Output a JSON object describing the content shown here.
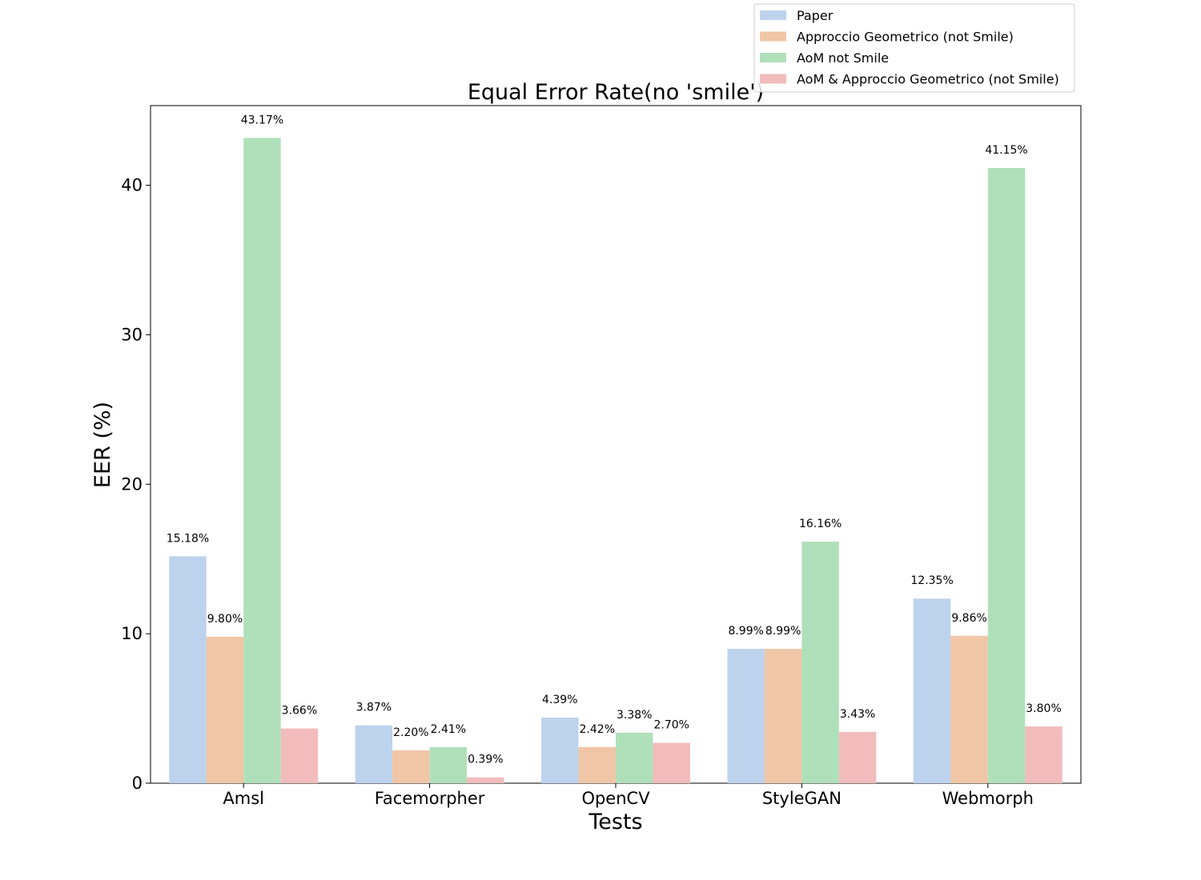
{
  "chart_data": {
    "type": "bar",
    "title": "Equal Error Rate(no 'smile')",
    "xlabel": "Tests",
    "ylabel": "EER (%)",
    "categories": [
      "Amsl",
      "Facemorpher",
      "OpenCV",
      "StyleGAN",
      "Webmorph"
    ],
    "series": [
      {
        "name": "Paper",
        "color": "#bdd3ed",
        "values": [
          15.18,
          3.87,
          4.39,
          8.99,
          12.35
        ],
        "labels": [
          "15.18%",
          "3.87%",
          "4.39%",
          "8.99%",
          "12.35%"
        ]
      },
      {
        "name": "Approccio Geometrico (not Smile)",
        "color": "#f0c6a7",
        "values": [
          9.8,
          2.2,
          2.42,
          8.99,
          9.86
        ],
        "labels": [
          "9.80%",
          "2.20%",
          "2.42%",
          "8.99%",
          "9.86%"
        ]
      },
      {
        "name": "AoM not Smile",
        "color": "#b0e0b9",
        "values": [
          43.17,
          2.41,
          3.38,
          16.16,
          41.15
        ],
        "labels": [
          "43.17%",
          "2.41%",
          "3.38%",
          "16.16%",
          "41.15%"
        ]
      },
      {
        "name": "AoM & Approccio Geometrico (not Smile)",
        "color": "#f2bcbc",
        "values": [
          3.66,
          0.39,
          2.7,
          3.43,
          3.8
        ],
        "labels": [
          "3.66%",
          "0.39%",
          "2.70%",
          "3.43%",
          "3.80%"
        ]
      }
    ],
    "yticks": [
      0,
      10,
      20,
      30,
      40
    ],
    "ylim": [
      0,
      45.33
    ],
    "grid": false,
    "legend_position": "top-right"
  }
}
